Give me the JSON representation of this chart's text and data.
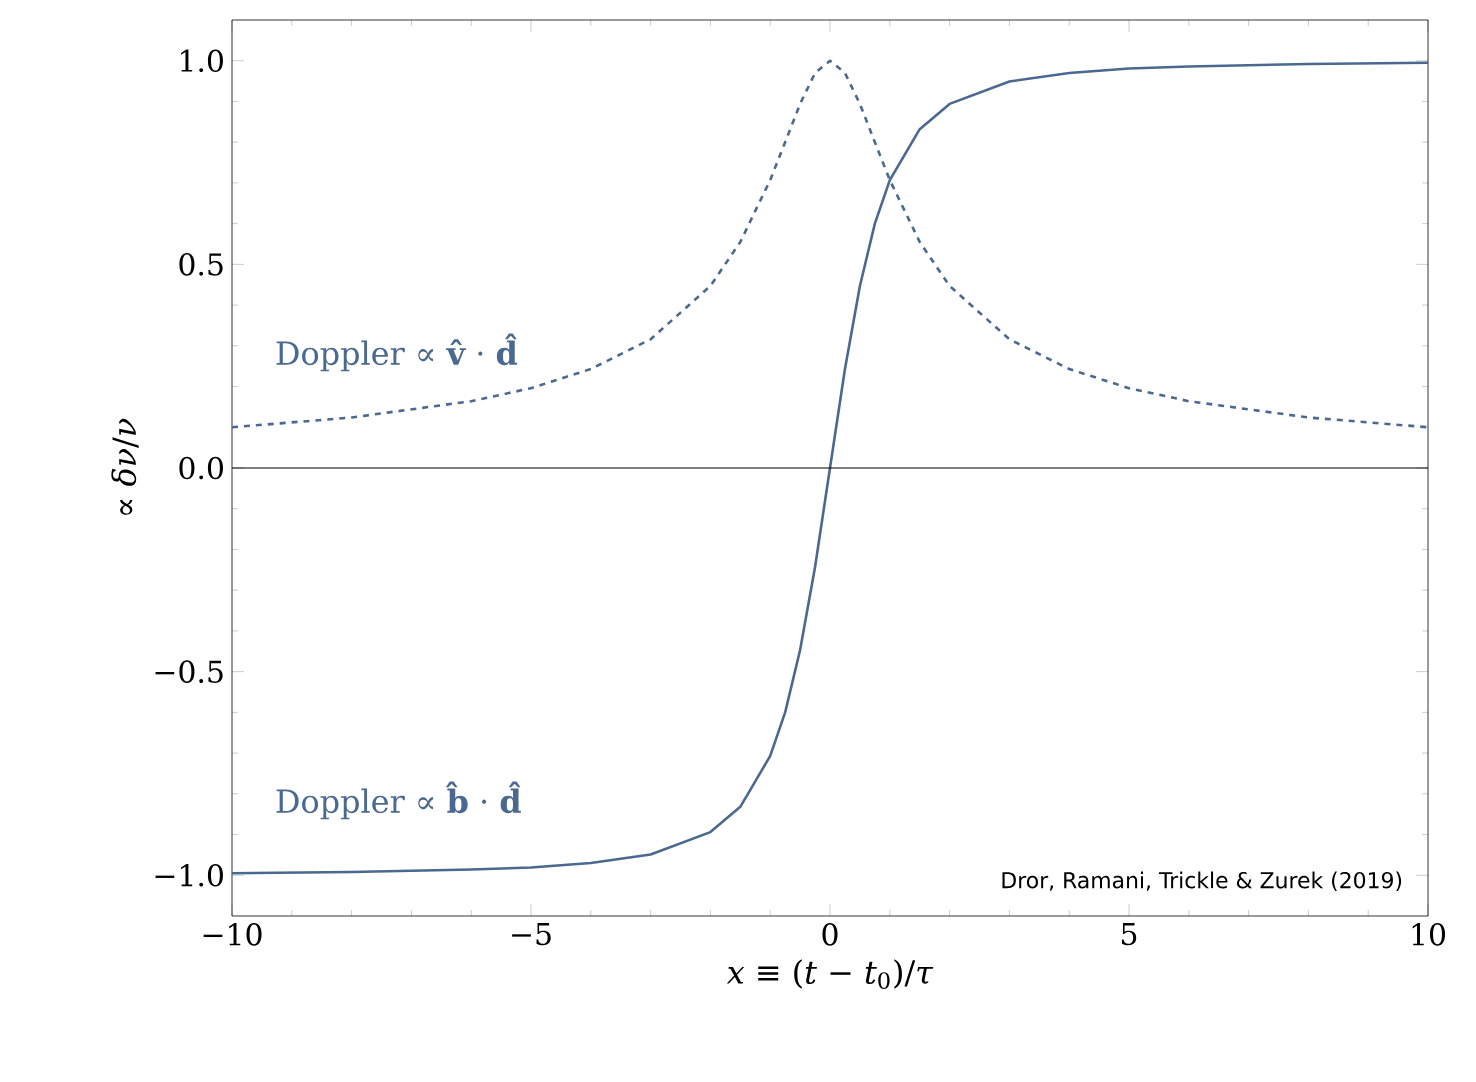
{
  "chart_data": {
    "type": "line",
    "xlabel": "*x* ≡ (*t* − *t*$_{0}$)/*τ*",
    "ylabel": "∝ *δν*/*ν*",
    "x": [
      -10,
      -8,
      -6,
      -5,
      -4,
      -3,
      -2,
      -1.5,
      -1,
      -0.75,
      -0.5,
      -0.25,
      0,
      0.25,
      0.5,
      0.75,
      1,
      1.5,
      2,
      3,
      4,
      5,
      6,
      8,
      10
    ],
    "series": [
      {
        "name": "Doppler ∝ **v̂** · **d̂**",
        "color": "#4a6890",
        "line_style": "dashed",
        "values": [
          0.1,
          0.124,
          0.164,
          0.196,
          0.243,
          0.316,
          0.447,
          0.555,
          0.707,
          0.8,
          0.894,
          0.97,
          1.0,
          0.97,
          0.894,
          0.8,
          0.707,
          0.555,
          0.447,
          0.316,
          0.243,
          0.196,
          0.164,
          0.124,
          0.1
        ]
      },
      {
        "name": "Doppler ∝ **b̂** · **d̂**",
        "color": "#4a6890",
        "line_style": "solid",
        "values": [
          -0.995,
          -0.992,
          -0.986,
          -0.981,
          -0.97,
          -0.949,
          -0.894,
          -0.832,
          -0.707,
          -0.6,
          -0.447,
          -0.243,
          0.0,
          0.243,
          0.447,
          0.6,
          0.707,
          0.832,
          0.894,
          0.949,
          0.97,
          0.981,
          0.986,
          0.992,
          0.995
        ]
      }
    ],
    "xlim": [
      -10,
      10
    ],
    "ylim": [
      -1.1,
      1.1
    ],
    "xticks": [
      {
        "value": -10,
        "label": "−10"
      },
      {
        "value": -5,
        "label": "−5"
      },
      0,
      5,
      10
    ],
    "yticks": [
      {
        "value": -1.0,
        "label": "−1.0"
      },
      {
        "value": -0.5,
        "label": "−0.5"
      },
      {
        "value": 0.0,
        "label": "0.0"
      },
      {
        "value": 0.5,
        "label": "0.5"
      },
      {
        "value": 1.0,
        "label": "1.0"
      }
    ],
    "ref_lines": [
      {
        "axis": "y",
        "value": 0,
        "color": "#000000"
      }
    ],
    "annotations": [
      "Dror, Ramani, Trickle & Zurek (2019)"
    ]
  }
}
